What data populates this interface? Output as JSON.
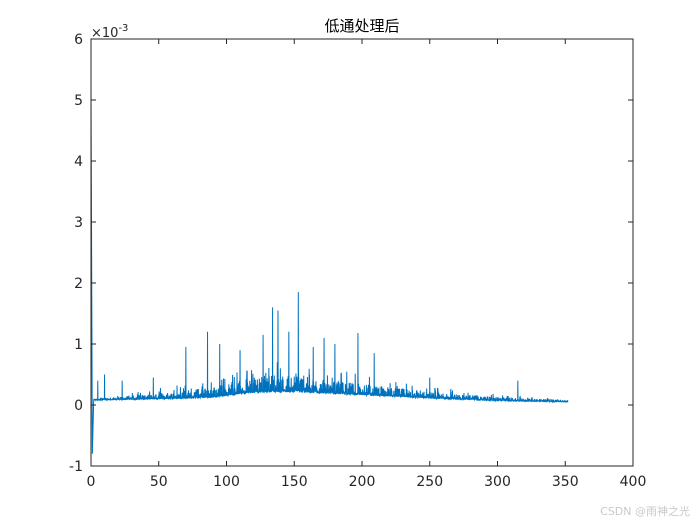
{
  "chart_data": {
    "type": "line",
    "title": "低通处理后",
    "xlabel": "",
    "ylabel": "",
    "xlim": [
      0,
      400
    ],
    "ylim": [
      -0.001,
      0.006
    ],
    "xticks": [
      0,
      50,
      100,
      150,
      200,
      250,
      300,
      350,
      400
    ],
    "yticks": [
      -1,
      0,
      1,
      2,
      3,
      4,
      5,
      6
    ],
    "y_exponent_label": "×10",
    "y_exponent_power": "-3",
    "grid": false,
    "line_color": "#0072BD",
    "series": [
      {
        "x_range": [
          0,
          352
        ],
        "x_step": 1,
        "baseline": [
          [
            0,
            8e-05
          ],
          [
            30,
            9e-05
          ],
          [
            60,
            0.0001
          ],
          [
            90,
            0.00012
          ],
          [
            110,
            0.00018
          ],
          [
            130,
            0.00021
          ],
          [
            150,
            0.00021
          ],
          [
            170,
            0.00019
          ],
          [
            200,
            0.00016
          ],
          [
            250,
            0.00011
          ],
          [
            300,
            7e-05
          ],
          [
            352,
            5e-05
          ]
        ],
        "upper_envelope": [
          [
            0,
            0.0001
          ],
          [
            30,
            0.00015
          ],
          [
            60,
            0.00022
          ],
          [
            90,
            0.0003
          ],
          [
            110,
            0.0004
          ],
          [
            130,
            0.0005
          ],
          [
            150,
            0.0005
          ],
          [
            170,
            0.00043
          ],
          [
            200,
            0.00035
          ],
          [
            250,
            0.00022
          ],
          [
            300,
            0.00013
          ],
          [
            352,
            8e-05
          ]
        ],
        "start_dip": [
          [
            0,
            0.0052
          ],
          [
            1,
            -0.0008
          ]
        ],
        "spikes": [
          [
            5,
            0.0004
          ],
          [
            10,
            0.0005
          ],
          [
            23,
            0.0004
          ],
          [
            46,
            0.00045
          ],
          [
            70,
            0.00095
          ],
          [
            86,
            0.0012
          ],
          [
            95,
            0.001
          ],
          [
            110,
            0.0009
          ],
          [
            127,
            0.00115
          ],
          [
            134,
            0.0016
          ],
          [
            138,
            0.00155
          ],
          [
            146,
            0.0012
          ],
          [
            153,
            0.00185
          ],
          [
            164,
            0.00095
          ],
          [
            172,
            0.0011
          ],
          [
            180,
            0.001
          ],
          [
            197,
            0.00118
          ],
          [
            209,
            0.00085
          ],
          [
            250,
            0.00045
          ],
          [
            315,
            0.0004
          ]
        ]
      }
    ]
  },
  "watermark": "CSDN @雨神之光"
}
